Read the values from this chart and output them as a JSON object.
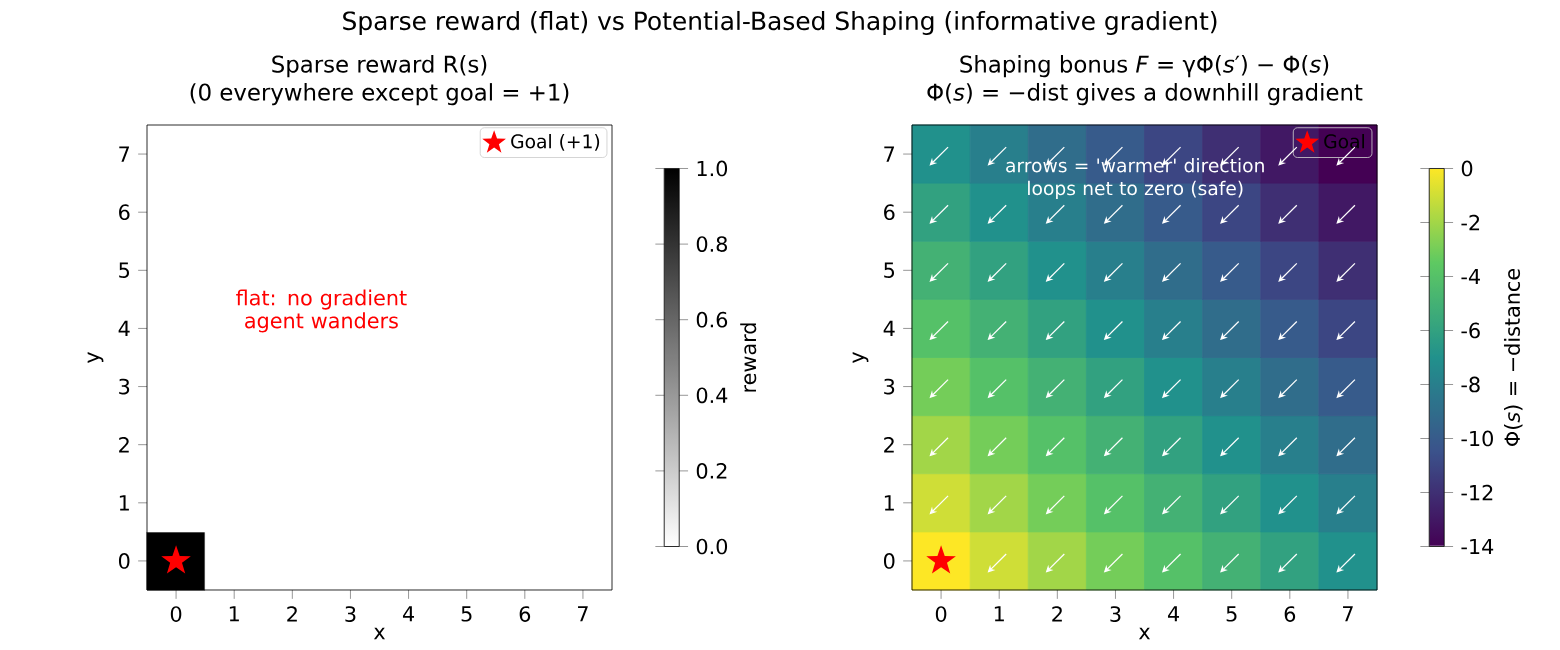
{
  "chart_data": [
    {
      "type": "other",
      "title": "Sparse reward (flat) vs Potential-Based Shaping (informative gradient)"
    },
    {
      "type": "heatmap",
      "title": "Sparse reward R(s)",
      "subtitle": "(0 everywhere except goal = +1)",
      "xlabel": "x",
      "ylabel": "y",
      "clabel": "reward",
      "categories": [
        "0",
        "1",
        "2",
        "3",
        "4",
        "5",
        "6",
        "7"
      ],
      "y_categories": [
        "7",
        "6",
        "5",
        "4",
        "3",
        "2",
        "1",
        "0"
      ],
      "cells": [
        [
          0,
          0,
          0,
          0,
          0,
          0,
          0,
          0
        ],
        [
          0,
          0,
          0,
          0,
          0,
          0,
          0,
          0
        ],
        [
          0,
          0,
          0,
          0,
          0,
          0,
          0,
          0
        ],
        [
          0,
          0,
          0,
          0,
          0,
          0,
          0,
          0
        ],
        [
          0,
          0,
          0,
          0,
          0,
          0,
          0,
          0
        ],
        [
          0,
          0,
          0,
          0,
          0,
          0,
          0,
          0
        ],
        [
          0,
          0,
          0,
          0,
          0,
          0,
          0,
          0
        ],
        [
          1,
          0,
          0,
          0,
          0,
          0,
          0,
          0
        ]
      ],
      "colors": [
        "#ffffff",
        "#000000"
      ],
      "clim": [
        0,
        1
      ],
      "cticks": [
        {
          "value": 0,
          "label": "0.0"
        },
        {
          "value": 0.2,
          "label": "0.2"
        },
        {
          "value": 0.4,
          "label": "0.4"
        },
        {
          "value": 0.6,
          "label": "0.6"
        },
        {
          "value": 0.8,
          "label": "0.8"
        },
        {
          "value": 1,
          "label": "1.0"
        }
      ],
      "series": [
        {
          "type": "scatter",
          "name": "Goal (+1)",
          "color": "#ff0000",
          "marker": "star",
          "x": [
            "0"
          ],
          "values": [
            7
          ]
        }
      ],
      "legend": "top right",
      "annotations": [
        "flat: no gradient agent wanders"
      ]
    },
    {
      "type": "heatmap",
      "title": "Shaping bonus *F* = γΦ(*s*′) − Φ(*s*)",
      "subtitle": "Φ(*s*) = −dist  gives a downhill gradient",
      "xlabel": "x",
      "ylabel": "y",
      "clabel": "Φ(*s*) = −distance",
      "categories": [
        "0",
        "1",
        "2",
        "3",
        "4",
        "5",
        "6",
        "7"
      ],
      "y_categories": [
        "7",
        "6",
        "5",
        "4",
        "3",
        "2",
        "1",
        "0"
      ],
      "cells": [
        [
          -7,
          -8,
          -9,
          -10,
          -11,
          -12,
          -13,
          -14
        ],
        [
          -6,
          -7,
          -8,
          -9,
          -10,
          -11,
          -12,
          -13
        ],
        [
          -5,
          -6,
          -7,
          -8,
          -9,
          -10,
          -11,
          -12
        ],
        [
          -4,
          -5,
          -6,
          -7,
          -8,
          -9,
          -10,
          -11
        ],
        [
          -3,
          -4,
          -5,
          -6,
          -7,
          -8,
          -9,
          -10
        ],
        [
          -2,
          -3,
          -4,
          -5,
          -6,
          -7,
          -8,
          -9
        ],
        [
          -1,
          -2,
          -3,
          -4,
          -5,
          -6,
          -7,
          -8
        ],
        [
          0,
          -1,
          -2,
          -3,
          -4,
          -5,
          -6,
          -7
        ]
      ],
      "colors": [
        "#440154",
        "#3b528b",
        "#21918c",
        "#5ec962",
        "#fde725"
      ],
      "clim": [
        -14,
        0
      ],
      "cticks": [
        -14,
        -12,
        -10,
        -8,
        -6,
        -4,
        -2,
        0
      ],
      "series": [
        {
          "type": "scatter",
          "name": "Goal",
          "color": "#ff0000",
          "marker": "star",
          "x": [
            "0"
          ],
          "values": [
            7
          ]
        }
      ],
      "legend": "top right",
      "annotations": [
        "arrows = 'warmer' direction loops net to zero (safe)"
      ]
    }
  ]
}
